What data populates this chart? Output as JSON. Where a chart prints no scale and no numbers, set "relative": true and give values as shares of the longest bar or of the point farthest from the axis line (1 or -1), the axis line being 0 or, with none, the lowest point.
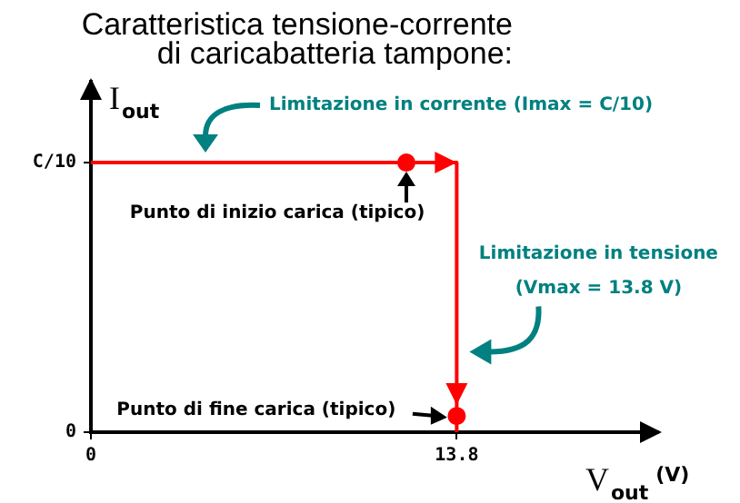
{
  "chart_data": {
    "type": "line",
    "title": "Caratteristica tensione-corrente di caricabatteria tampone:",
    "xlabel": "V$_{out}$ $^{(V)}$",
    "ylabel": "I$_{out}$",
    "xlim": [
      0,
      21.4
    ],
    "xticks": [
      0,
      13.8
    ],
    "relative": true,
    "grid": false,
    "legend": false,
    "series": [
      {
        "color": "#ff0000",
        "x": [
          0,
          13.8,
          13.8
        ],
        "values": [
          1,
          1,
          0
        ],
        "marker": "none",
        "line_style": "solid"
      },
      {
        "type": "scatter",
        "color": "#ff0000",
        "x": [
          11.9,
          13.8
        ],
        "values": [
          1,
          0.06
        ],
        "marker": "circle"
      }
    ],
    "annotations": [
      "Limitazione in corrente (Imax = C/10)",
      {
        "text": "Punto di inizio carica (tipico)",
        "x": 11.9,
        "y": 1
      },
      {
        "text": "Limitazione in tensione (Vmax = 13.8 V)",
        "x": 13.8,
        "y": 0.5
      },
      "Punto di fine carica (tipico)",
      "C/10",
      "0"
    ]
  }
}
